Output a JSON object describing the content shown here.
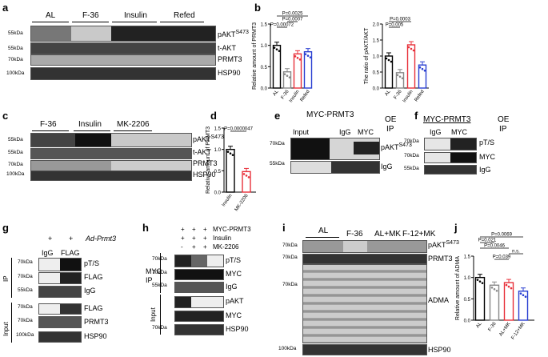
{
  "panels": [
    "a",
    "b",
    "c",
    "d",
    "e",
    "f",
    "g",
    "h",
    "i",
    "j"
  ],
  "a": {
    "groups": [
      "AL",
      "F-36",
      "Insulin",
      "Refed"
    ],
    "rows": [
      {
        "mw": "55kDa",
        "label": "pAKT",
        "sup": "S473"
      },
      {
        "mw": "55kDa",
        "label": "t-AKT"
      },
      {
        "mw": "70kDa",
        "label": "PRMT3"
      },
      {
        "mw": "100kDa",
        "label": "HSP90"
      }
    ]
  },
  "c": {
    "groups": [
      "F-36",
      "Insulin",
      "MK-2206"
    ],
    "rows": [
      {
        "mw": "55kDa",
        "label": "pAKT",
        "sup": "S473"
      },
      {
        "mw": "55kDa",
        "label": "t-AKT"
      },
      {
        "mw": "70kDa",
        "label": "PRMT3"
      },
      {
        "mw": "100kDa",
        "label": "HSP90"
      }
    ]
  },
  "e": {
    "header": "MYC-PRMT3",
    "oe": "OE",
    "ip": "IP",
    "lanes": [
      "Input",
      "IgG",
      "MYC"
    ],
    "rows": [
      {
        "mw": "70kDa",
        "label": "pAKT",
        "sup": "S473"
      },
      {
        "mw": "55kDa",
        "label": "IgG"
      }
    ]
  },
  "f": {
    "header": "MYC-PRMT3",
    "oe": "OE",
    "ip": "IP",
    "lanes": [
      "IgG",
      "MYC"
    ],
    "rows": [
      {
        "mw": "70kDa",
        "label": "pT/S"
      },
      {
        "mw": "70kDa",
        "label": "MYC"
      },
      {
        "mw": "55kDa",
        "label": "IgG"
      }
    ]
  },
  "g": {
    "reagent": "Ad-Prmt3",
    "plus": [
      "+",
      "+"
    ],
    "lanes": [
      "IgG",
      "FLAG"
    ],
    "ip": "IP",
    "input": "Input",
    "rows": [
      {
        "mw": "70kDa",
        "label": "pT/S"
      },
      {
        "mw": "70kDa",
        "label": "FLAG"
      },
      {
        "mw": "55kDa",
        "label": "IgG"
      },
      {
        "mw": "70kDa",
        "label": "FLAG"
      },
      {
        "mw": "70kDa",
        "label": "PRMT3"
      },
      {
        "mw": "100kDa",
        "label": "HSP90"
      }
    ]
  },
  "h": {
    "conditions": [
      {
        "name": "MYC-PRMT3",
        "signs": [
          "+",
          "+",
          "+"
        ]
      },
      {
        "name": "Insulin",
        "signs": [
          "+",
          "+",
          "+"
        ]
      },
      {
        "name": "MK-2206",
        "signs": [
          "-",
          "+",
          "+"
        ]
      }
    ],
    "ip": "MYC IP",
    "input": "Input",
    "rows": [
      {
        "mw": "70kDa",
        "label": "pT/S"
      },
      {
        "mw": "70kDa",
        "label": "MYC"
      },
      {
        "mw": "55kDa",
        "label": "IgG"
      },
      {
        "mw": "",
        "label": "pAKT"
      },
      {
        "mw": "",
        "label": "MYC"
      },
      {
        "mw": "70kDa",
        "label": "HSP90"
      }
    ]
  },
  "i": {
    "groups": [
      "AL",
      "F-36",
      "AL+MK",
      "F-12+MK"
    ],
    "rows": [
      {
        "mw": "70kDa",
        "label": "pAKT",
        "sup": "S473"
      },
      {
        "mw": "70kDa",
        "label": "PRMT3"
      },
      {
        "mw": "70kDa",
        "label": "ADMA"
      },
      {
        "mw": "100kDa",
        "label": "HSP90"
      }
    ]
  },
  "chart_data": [
    {
      "panel": "b",
      "type": "bar",
      "ylabel": "Relative amount of PRMT3",
      "categories": [
        "AL",
        "F-36",
        "Insulin",
        "Refed"
      ],
      "values": [
        1.0,
        0.38,
        0.8,
        0.85
      ],
      "ylim": [
        0,
        1.5
      ],
      "yticks": [
        "0.0",
        "0.5",
        "1.0",
        "1.5"
      ],
      "colors": [
        "#000000",
        "#888888",
        "#e8303a",
        "#2a3fd1"
      ],
      "annotations": [
        "P=0.0025",
        "P=0.0007",
        "P=0.00072"
      ]
    },
    {
      "panel": "b2",
      "type": "bar",
      "ylabel": "The ratio of pAKT/AKT",
      "categories": [
        "AL",
        "F-36",
        "Insulin",
        "Refed"
      ],
      "values": [
        1.0,
        0.48,
        1.35,
        0.72
      ],
      "ylim": [
        0,
        2.0
      ],
      "yticks": [
        "0.0",
        "0.5",
        "1.0",
        "1.5",
        "2.0"
      ],
      "colors": [
        "#000000",
        "#888888",
        "#e8303a",
        "#2a3fd1"
      ],
      "annotations": [
        "P=0.0003",
        "P=0.005"
      ]
    },
    {
      "panel": "d",
      "type": "bar",
      "ylabel": "Relative amount of PRMT3",
      "categories": [
        "Insulin",
        "MK-2206"
      ],
      "values": [
        1.0,
        0.48
      ],
      "ylim": [
        0,
        1.5
      ],
      "yticks": [
        "0.0",
        "0.5",
        "1.0",
        "1.5"
      ],
      "colors": [
        "#000000",
        "#e8303a"
      ],
      "annotations": [
        "P=0.0000047"
      ]
    },
    {
      "panel": "j",
      "type": "bar",
      "ylabel": "Relative amount of ADMA",
      "categories": [
        "AL",
        "F-36",
        "AL+MK",
        "F-12+MK"
      ],
      "values": [
        1.0,
        0.82,
        0.88,
        0.68
      ],
      "ylim": [
        0,
        1.5
      ],
      "yticks": [
        "0.0",
        "0.5",
        "1.0",
        "1.5"
      ],
      "colors": [
        "#000000",
        "#888888",
        "#e8303a",
        "#2a3fd1"
      ],
      "annotations": [
        "P=0.0069",
        "P=0.021",
        "P=0.0046",
        "n.s.",
        "P=0.039"
      ]
    }
  ]
}
